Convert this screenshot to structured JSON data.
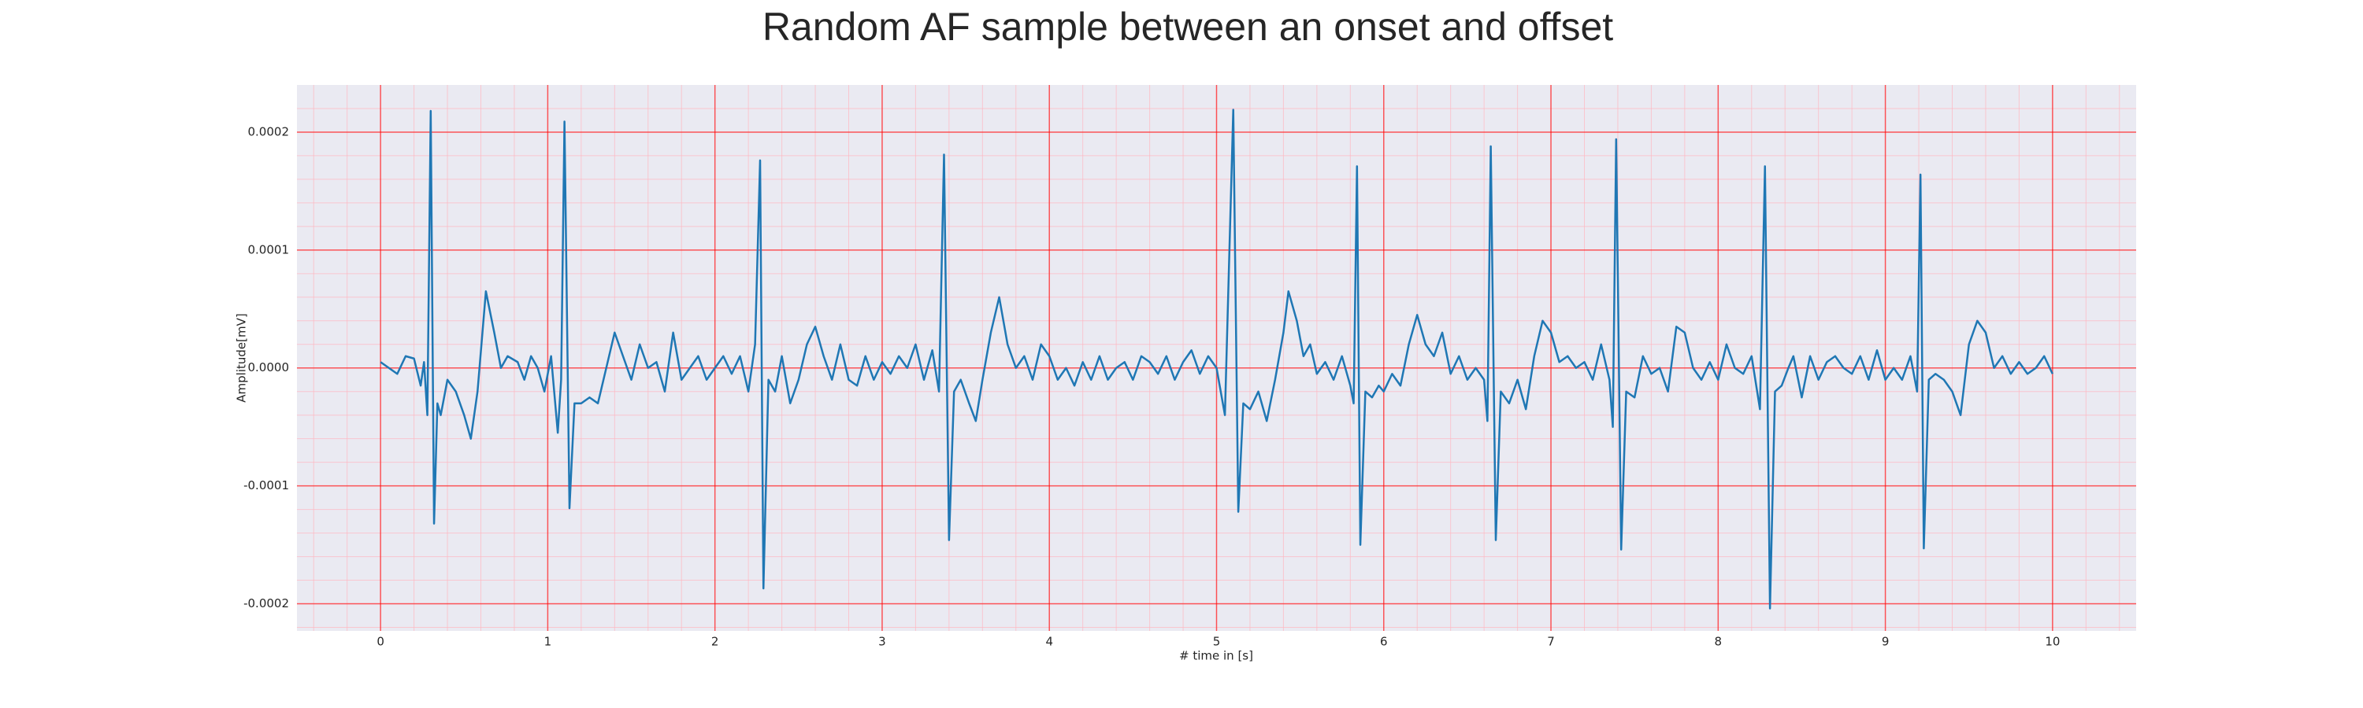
{
  "chart_data": {
    "type": "line",
    "title": "Random AF sample between an onset and offset",
    "x_label": "# time in [s]",
    "y_label": "Amplitude[mV]",
    "color": "#1f77b4",
    "grid": true,
    "minor_grid": {
      "x": 0.2,
      "y": 2e-05
    },
    "xlim": [
      -0.5,
      10.5
    ],
    "ylim": [
      -0.000223,
      0.00024
    ],
    "xticks": [
      0,
      1,
      2,
      3,
      4,
      5,
      6,
      7,
      8,
      9,
      10
    ],
    "yticks": [
      -0.0002,
      -0.0001,
      {
        "value": 0,
        "label": "0.0000"
      },
      0.0001,
      0.0002
    ],
    "x": [
      0,
      0.05,
      0.1,
      0.15,
      0.2,
      0.24,
      0.26,
      0.28,
      0.3,
      0.32,
      0.34,
      0.36,
      0.4,
      0.45,
      0.5,
      0.54,
      0.58,
      0.63,
      0.68,
      0.72,
      0.76,
      0.82,
      0.86,
      0.9,
      0.94,
      0.98,
      1.02,
      1.06,
      1.08,
      1.1,
      1.13,
      1.16,
      1.2,
      1.25,
      1.3,
      1.35,
      1.4,
      1.45,
      1.5,
      1.55,
      1.6,
      1.65,
      1.7,
      1.75,
      1.8,
      1.85,
      1.9,
      1.95,
      2.0,
      2.05,
      2.1,
      2.15,
      2.2,
      2.24,
      2.27,
      2.29,
      2.32,
      2.36,
      2.4,
      2.45,
      2.5,
      2.55,
      2.6,
      2.65,
      2.7,
      2.75,
      2.8,
      2.85,
      2.9,
      2.95,
      3.0,
      3.05,
      3.1,
      3.15,
      3.2,
      3.25,
      3.3,
      3.34,
      3.37,
      3.4,
      3.43,
      3.47,
      3.52,
      3.56,
      3.6,
      3.65,
      3.7,
      3.75,
      3.8,
      3.85,
      3.9,
      3.95,
      4.0,
      4.05,
      4.1,
      4.15,
      4.2,
      4.25,
      4.3,
      4.35,
      4.4,
      4.45,
      4.5,
      4.55,
      4.6,
      4.65,
      4.7,
      4.75,
      4.8,
      4.85,
      4.9,
      4.95,
      5.0,
      5.05,
      5.1,
      5.13,
      5.16,
      5.2,
      5.25,
      5.3,
      5.35,
      5.4,
      5.43,
      5.48,
      5.52,
      5.56,
      5.6,
      5.65,
      5.7,
      5.75,
      5.8,
      5.82,
      5.84,
      5.86,
      5.89,
      5.93,
      5.97,
      6.0,
      6.05,
      6.1,
      6.15,
      6.2,
      6.25,
      6.3,
      6.35,
      6.4,
      6.45,
      6.5,
      6.55,
      6.6,
      6.62,
      6.64,
      6.67,
      6.7,
      6.75,
      6.8,
      6.85,
      6.9,
      6.95,
      7.0,
      7.05,
      7.1,
      7.15,
      7.2,
      7.25,
      7.3,
      7.35,
      7.37,
      7.39,
      7.42,
      7.45,
      7.5,
      7.55,
      7.6,
      7.65,
      7.7,
      7.75,
      7.8,
      7.85,
      7.9,
      7.95,
      8.0,
      8.05,
      8.1,
      8.15,
      8.2,
      8.25,
      8.28,
      8.31,
      8.34,
      8.38,
      8.42,
      8.45,
      8.5,
      8.55,
      8.6,
      8.65,
      8.7,
      8.75,
      8.8,
      8.85,
      8.9,
      8.95,
      9.0,
      9.05,
      9.1,
      9.15,
      9.19,
      9.21,
      9.23,
      9.26,
      9.3,
      9.35,
      9.4,
      9.45,
      9.5,
      9.55,
      9.6,
      9.65,
      9.7,
      9.75,
      9.8,
      9.85,
      9.9,
      9.95,
      10.0
    ],
    "values": [
      5e-06,
      0,
      -5e-06,
      1e-05,
      8e-06,
      -1.5e-05,
      5e-06,
      -4e-05,
      0.000218,
      -0.000132,
      -3e-05,
      -4e-05,
      -1e-05,
      -2e-05,
      -4e-05,
      -6e-05,
      -2e-05,
      6.5e-05,
      3e-05,
      0,
      1e-05,
      5e-06,
      -1e-05,
      1e-05,
      0,
      -2e-05,
      1e-05,
      -5.5e-05,
      -1e-05,
      0.000209,
      -0.000119,
      -3e-05,
      -3e-05,
      -2.5e-05,
      -3e-05,
      0,
      3e-05,
      1e-05,
      -1e-05,
      2e-05,
      0,
      5e-06,
      -2e-05,
      3e-05,
      -1e-05,
      0,
      1e-05,
      -1e-05,
      0,
      1e-05,
      -5e-06,
      1e-05,
      -2e-05,
      2e-05,
      0.000176,
      -0.000187,
      -1e-05,
      -2e-05,
      1e-05,
      -3e-05,
      -1e-05,
      2e-05,
      3.5e-05,
      1e-05,
      -1e-05,
      2e-05,
      -1e-05,
      -1.5e-05,
      1e-05,
      -1e-05,
      5e-06,
      -5e-06,
      1e-05,
      0,
      2e-05,
      -1e-05,
      1.5e-05,
      -2e-05,
      0.000181,
      -0.000146,
      -2e-05,
      -1e-05,
      -3e-05,
      -4.5e-05,
      -1e-05,
      3e-05,
      6e-05,
      2e-05,
      0,
      1e-05,
      -1e-05,
      2e-05,
      1e-05,
      -1e-05,
      0,
      -1.5e-05,
      5e-06,
      -1e-05,
      1e-05,
      -1e-05,
      0,
      5e-06,
      -1e-05,
      1e-05,
      5e-06,
      -5e-06,
      1e-05,
      -1e-05,
      5e-06,
      1.5e-05,
      -5e-06,
      1e-05,
      0,
      -4e-05,
      0.000219,
      -0.000122,
      -3e-05,
      -3.5e-05,
      -2e-05,
      -4.5e-05,
      -1e-05,
      3e-05,
      6.5e-05,
      4e-05,
      1e-05,
      2e-05,
      -5e-06,
      5e-06,
      -1e-05,
      1e-05,
      -1.5e-05,
      -3e-05,
      0.000171,
      -0.00015,
      -2e-05,
      -2.5e-05,
      -1.5e-05,
      -2e-05,
      -5e-06,
      -1.5e-05,
      2e-05,
      4.5e-05,
      2e-05,
      1e-05,
      3e-05,
      -5e-06,
      1e-05,
      -1e-05,
      0,
      -1e-05,
      -4.5e-05,
      0.000188,
      -0.000146,
      -2e-05,
      -3e-05,
      -1e-05,
      -3.5e-05,
      1e-05,
      4e-05,
      3e-05,
      5e-06,
      1e-05,
      0,
      5e-06,
      -1e-05,
      2e-05,
      -1e-05,
      -5e-05,
      0.000194,
      -0.000154,
      -2e-05,
      -2.5e-05,
      1e-05,
      -5e-06,
      0,
      -2e-05,
      3.5e-05,
      3e-05,
      0,
      -1e-05,
      5e-06,
      -1e-05,
      2e-05,
      0,
      -5e-06,
      1e-05,
      -3.5e-05,
      0.000171,
      -0.000204,
      -2e-05,
      -1.5e-05,
      0,
      1e-05,
      -2.5e-05,
      1e-05,
      -1e-05,
      5e-06,
      1e-05,
      0,
      -5e-06,
      1e-05,
      -1e-05,
      1.5e-05,
      -1e-05,
      0,
      -1e-05,
      1e-05,
      -2e-05,
      0.000164,
      -0.000153,
      -1e-05,
      -5e-06,
      -1e-05,
      -2e-05,
      -4e-05,
      2e-05,
      4e-05,
      3e-05,
      0,
      1e-05,
      -5e-06,
      5e-06,
      -5e-06,
      0,
      1e-05,
      -5e-06
    ]
  }
}
